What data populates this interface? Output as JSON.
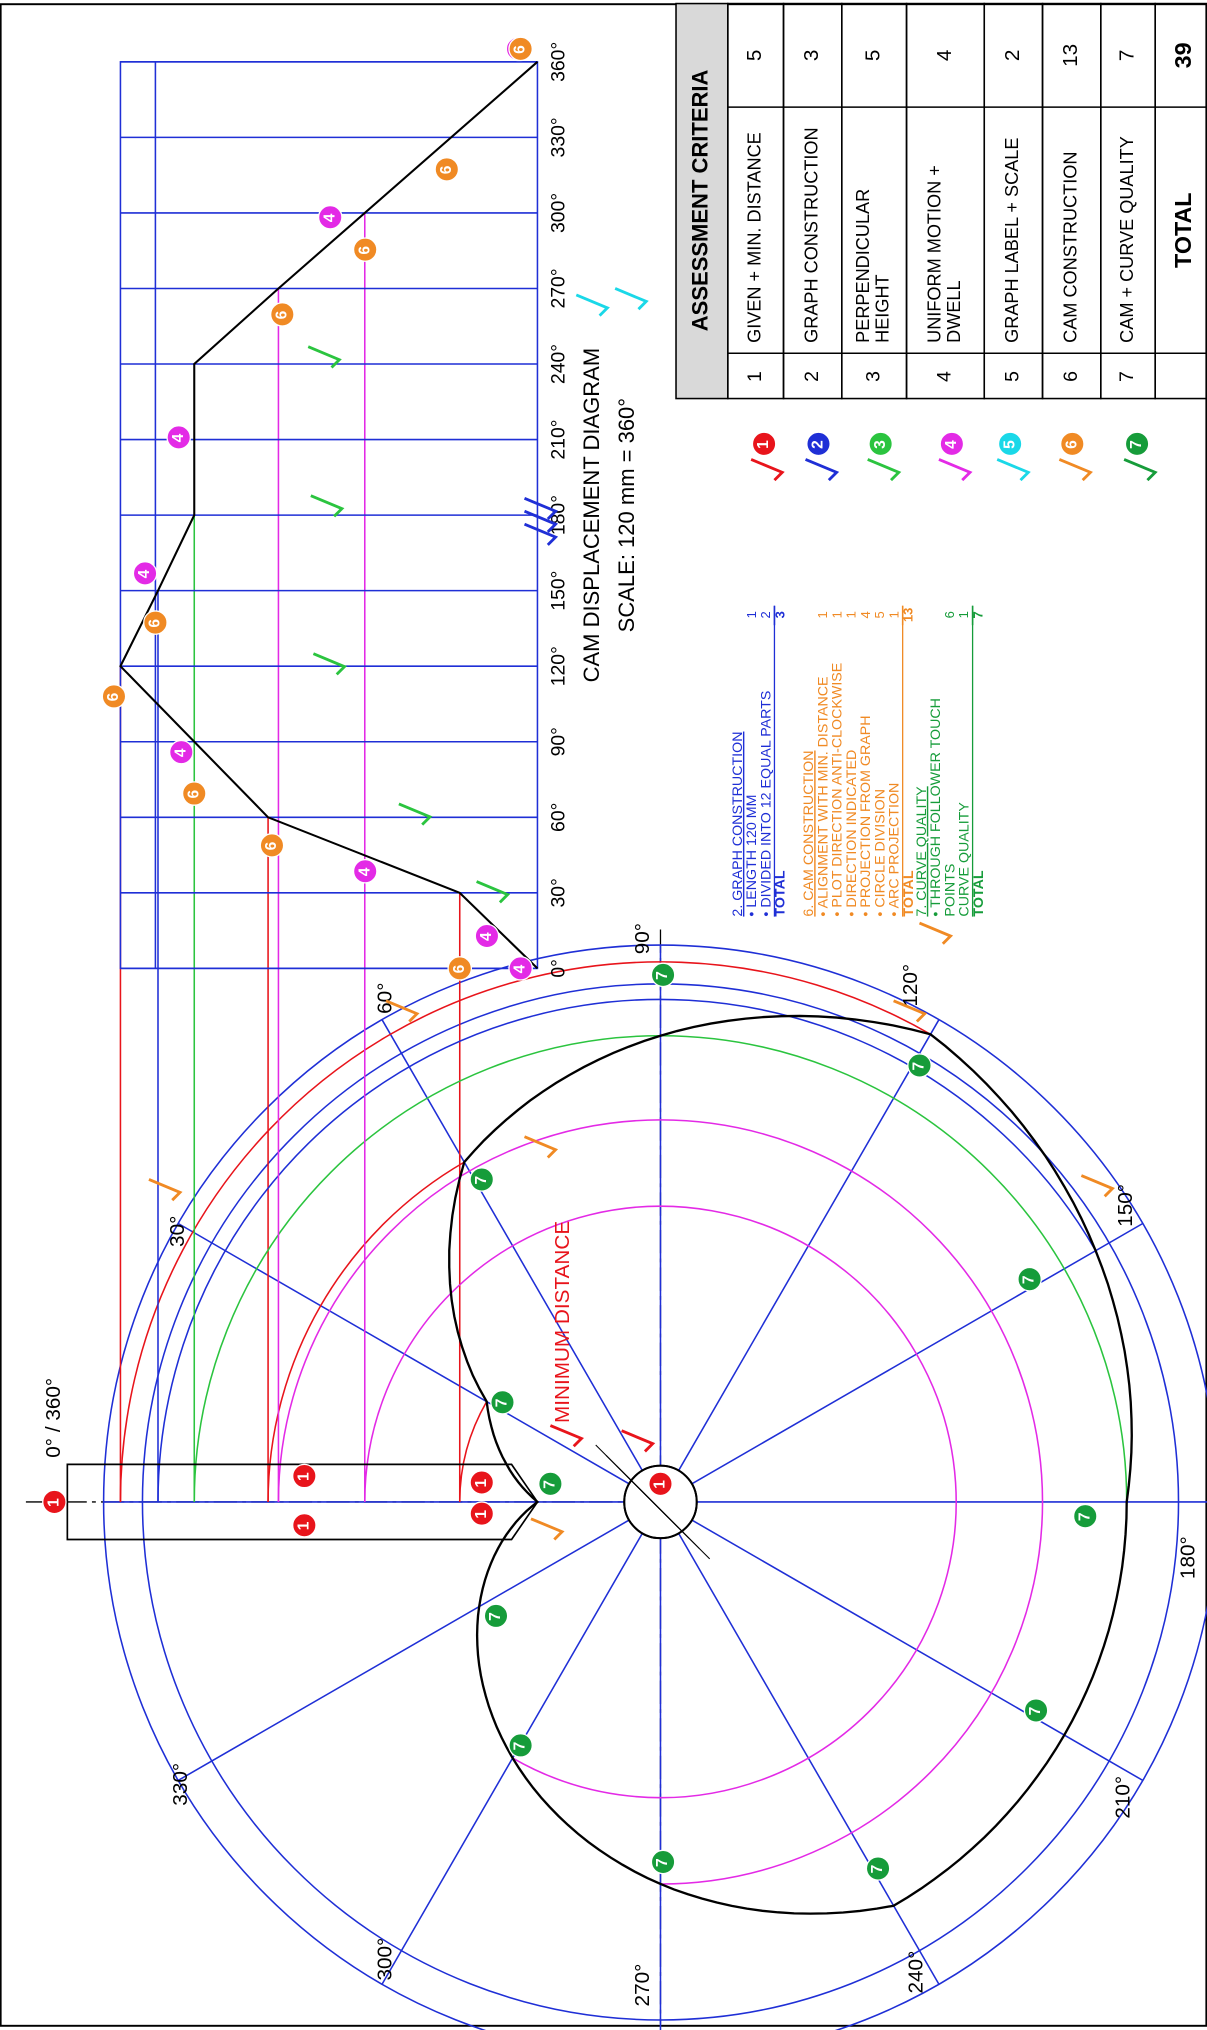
{
  "drawing": {
    "cam_angles": [
      "0° / 360°",
      "30°",
      "60°",
      "90°",
      "120°",
      "150°",
      "180°",
      "210°",
      "240°",
      "270°",
      "300°",
      "330°"
    ],
    "minimum_distance": "MINIMUM DISTANCE",
    "graph": {
      "title": "CAM DISPLACEMENT DIAGRAM",
      "scale": "SCALE: 120 mm = 360°",
      "angles": [
        "0°",
        "30°",
        "60°",
        "90°",
        "120°",
        "150°",
        "180°",
        "210°",
        "240°",
        "270°",
        "300°",
        "330°",
        "360°"
      ]
    },
    "markers": [
      "1",
      "1",
      "1",
      "1",
      "1",
      "1",
      "4",
      "4",
      "4",
      "4",
      "4",
      "4",
      "4",
      "4",
      "6",
      "6",
      "6",
      "6",
      "6",
      "6",
      "6",
      "6",
      "6",
      "7",
      "7",
      "7",
      "7",
      "7",
      "7",
      "7",
      "7",
      "7",
      "7",
      "7",
      "7",
      "7"
    ],
    "legend_markers": [
      "1",
      "2",
      "3",
      "4",
      "5",
      "6",
      "7"
    ],
    "notes": [
      {
        "title": "2. GRAPH CONSTRUCTION",
        "items": [
          {
            "lines": [
              "• LENGTH 120 MM"
            ],
            "marks": "1"
          },
          {
            "lines": [
              "• DIVIDED INTO 12 EQUAL PARTS"
            ],
            "marks": "2"
          }
        ],
        "total": {
          "label": "TOTAL",
          "value": "3"
        }
      },
      {
        "title": "6. CAM CONSTRUCTION",
        "items": [
          {
            "lines": [
              "• ALIGNMENT WITH MIN. DISTANCE"
            ],
            "marks": "1"
          },
          {
            "lines": [
              "• PLOT DIRECTION ANTI-CLOCKWISE"
            ],
            "marks": "1"
          },
          {
            "lines": [
              "• DIRECTION INDICATED"
            ],
            "marks": "1"
          },
          {
            "lines": [
              "• PROJECTION FROM GRAPH"
            ],
            "marks": "4"
          },
          {
            "lines": [
              "• CIRCLE DIVISION"
            ],
            "marks": "5"
          },
          {
            "lines": [
              "• ARC PROJECTION"
            ],
            "marks": "1"
          }
        ],
        "total": {
          "label": "TOTAL",
          "value": "13"
        }
      },
      {
        "title": "7. CURVE QUALITY",
        "items": [
          {
            "lines": [
              "• THROUGH FOLLOWER TOUCH",
              "POINTS"
            ],
            "marks": "6"
          },
          {
            "lines": [
              "CURVE QUALITY"
            ],
            "marks": "1"
          }
        ],
        "total": {
          "label": "TOTAL",
          "value": "7"
        }
      }
    ]
  },
  "table": {
    "header": "ASSESSMENT CRITERIA",
    "rows": [
      {
        "no": "1",
        "criterion": [
          "GIVEN + MIN. DISTANCE"
        ],
        "marks": "5"
      },
      {
        "no": "2",
        "criterion": [
          "GRAPH CONSTRUCTION"
        ],
        "marks": "3"
      },
      {
        "no": "3",
        "criterion": [
          "PERPENDICULAR",
          "HEIGHT"
        ],
        "marks": "5"
      },
      {
        "no": "4",
        "criterion": [
          "UNIFORM MOTION +",
          "DWELL"
        ],
        "marks": "4"
      },
      {
        "no": "5",
        "criterion": [
          "GRAPH LABEL + SCALE"
        ],
        "marks": "2"
      },
      {
        "no": "6",
        "criterion": [
          "CAM CONSTRUCTION"
        ],
        "marks": "13"
      },
      {
        "no": "7",
        "criterion": [
          "CAM + CURVE QUALITY"
        ],
        "marks": "7"
      }
    ],
    "total": {
      "label": "TOTAL",
      "value": "39"
    }
  }
}
